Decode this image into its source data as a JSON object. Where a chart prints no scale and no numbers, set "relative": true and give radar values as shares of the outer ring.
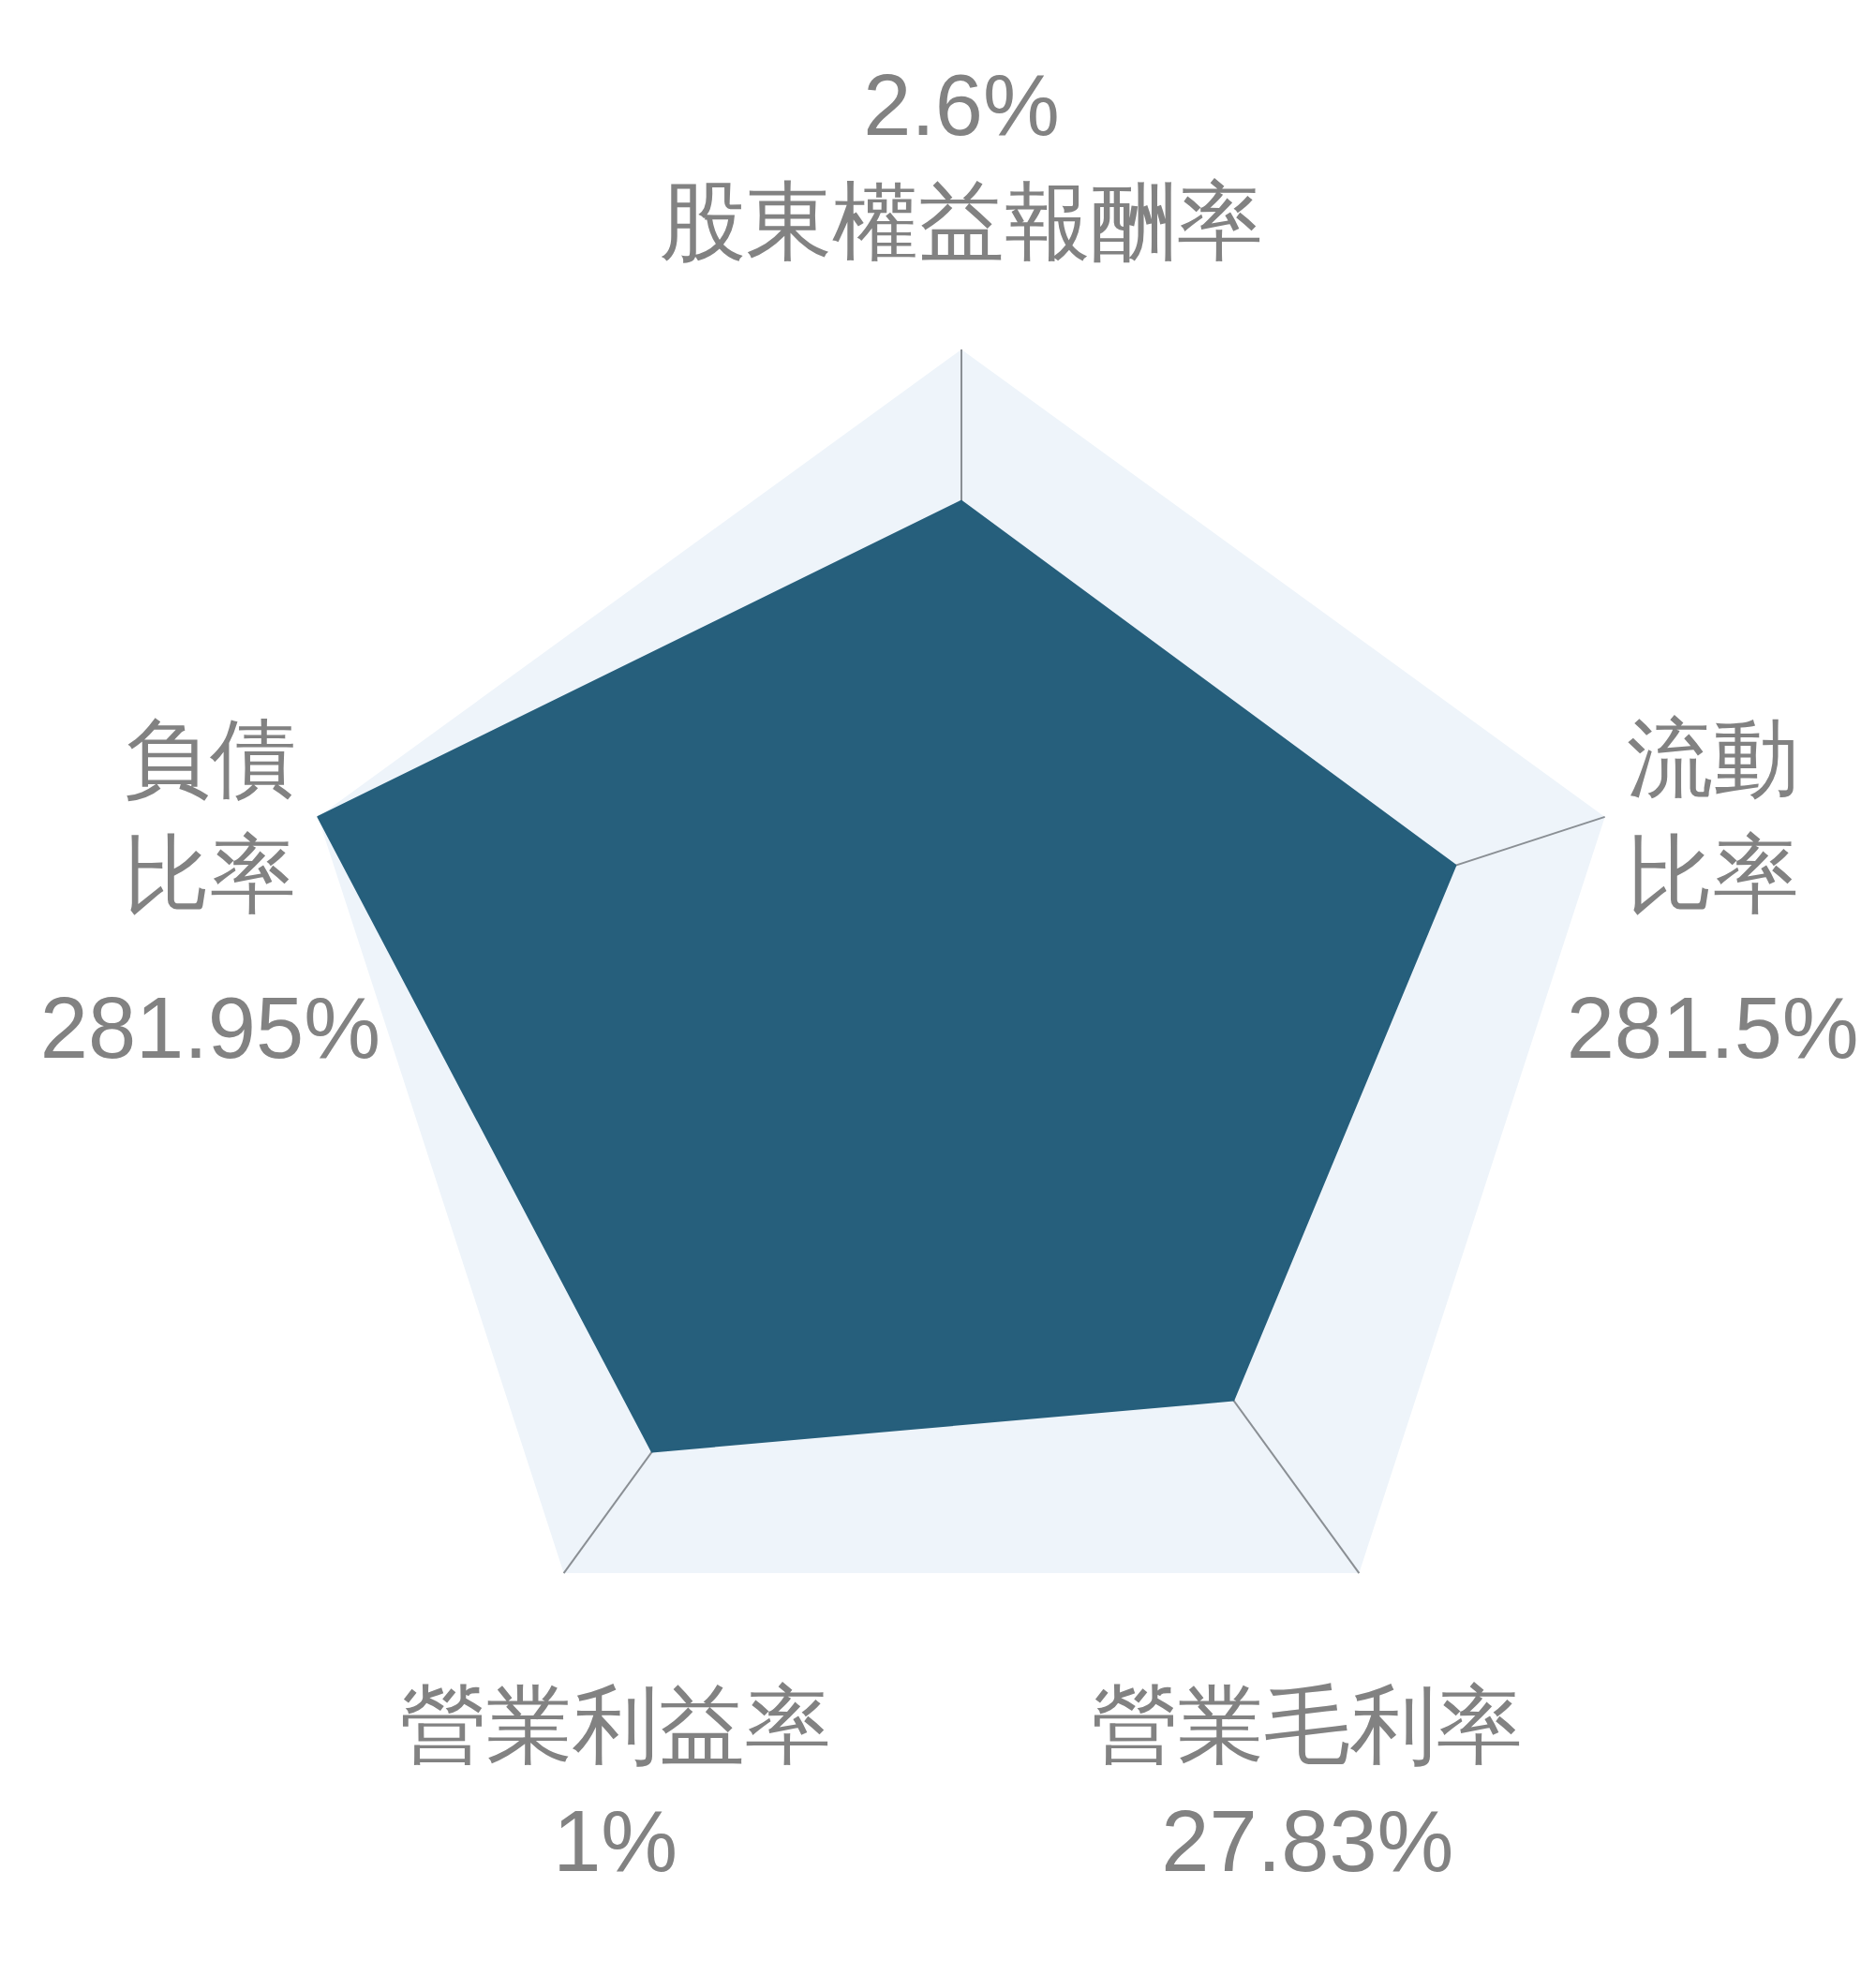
{
  "chart_data": {
    "type": "radar",
    "relative": true,
    "categories": [
      "股東權益報酬率",
      "流動比率",
      "營業毛利率",
      "營業利益率",
      "負債比率"
    ],
    "series": [
      {
        "color": "#265f7c",
        "values": [
          0.776,
          0.768,
          0.684,
          0.778,
          1.0
        ]
      }
    ],
    "value_labels": [
      "2.6%",
      "281.5%",
      "27.83%",
      "1%",
      "281.95%"
    ]
  }
}
